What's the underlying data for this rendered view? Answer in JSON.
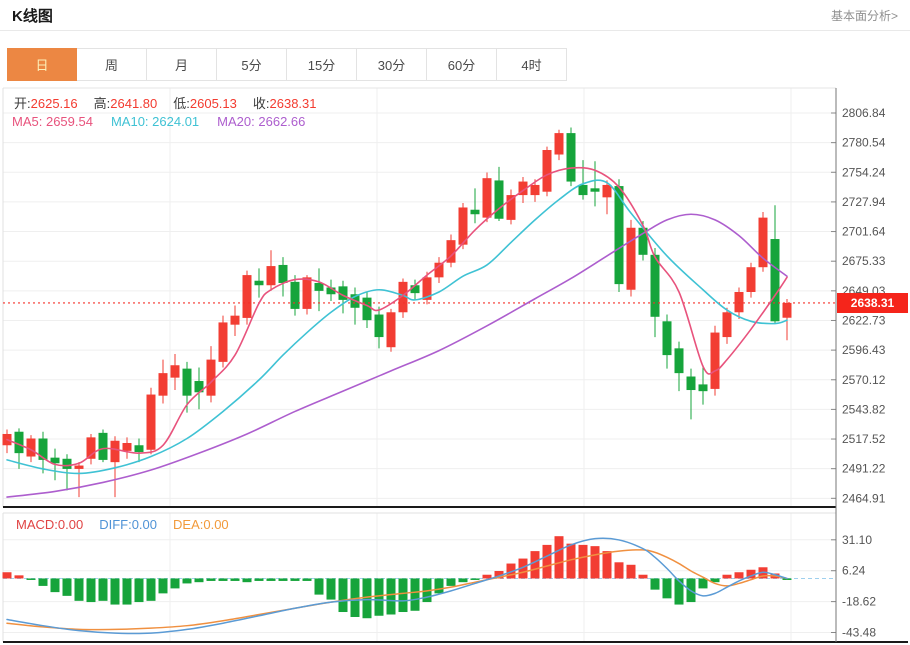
{
  "header": {
    "title": "K线图",
    "link": "基本面分析>"
  },
  "tabs": {
    "items": [
      "日",
      "周",
      "月",
      "5分",
      "15分",
      "30分",
      "60分",
      "4时"
    ],
    "active_index": 0
  },
  "quote": {
    "open_label": "开:",
    "open": "2625.16",
    "high_label": "高:",
    "high": "2641.80",
    "low_label": "低:",
    "low": "2605.13",
    "close_label": "收:",
    "close": "2638.31"
  },
  "ma": {
    "ma5_label": "MA5:",
    "ma5": "2659.54",
    "ma10_label": "MA10:",
    "ma10": "2624.01",
    "ma20_label": "MA20:",
    "ma20": "2662.66"
  },
  "price_badge": "2638.31",
  "macd_header": {
    "macd_label": "MACD:",
    "macd": "0.00",
    "diff_label": "DIFF:",
    "diff": "0.00",
    "dea_label": "DEA:",
    "dea": "0.00"
  },
  "colors": {
    "up_candle": "#f23d33",
    "down_candle": "#16a43b",
    "ma5_line": "#e8537d",
    "ma10_line": "#3fc2d4",
    "ma20_line": "#ad5ece",
    "diff_line": "#5b9bd5",
    "dea_line": "#f09040",
    "price_dotted_line": "#f5302a",
    "badge_bg": "#f5251b",
    "macd_zero_dash": "#9fd0ee",
    "tab_active_bg": "#ec8743",
    "tab_active_text": "#fdf0b8",
    "grid": "#efefef",
    "axis_text": "#555555"
  },
  "chart_data": {
    "type": "candlestick",
    "title": "K线图 (daily K-line with MA5/MA10/MA20 and MACD sub-chart)",
    "y_ticks": [
      "2806.84",
      "2780.54",
      "2754.24",
      "2727.94",
      "2701.64",
      "2675.33",
      "2649.03",
      "2622.73",
      "2596.43",
      "2570.12",
      "2543.82",
      "2517.52",
      "2491.22",
      "2464.91"
    ],
    "current_price": 2638.31,
    "ohlc_last": {
      "open": 2625.16,
      "high": 2641.8,
      "low": 2605.13,
      "close": 2638.31
    },
    "candles": [
      [
        2512,
        2526,
        2505,
        2522
      ],
      [
        2524,
        2527,
        2491,
        2505
      ],
      [
        2502,
        2521,
        2497,
        2518
      ],
      [
        2518,
        2524,
        2487,
        2499
      ],
      [
        2501,
        2509,
        2481,
        2496
      ],
      [
        2500,
        2504,
        2472,
        2491
      ],
      [
        2491,
        2497,
        2466,
        2494
      ],
      [
        2500,
        2522,
        2495,
        2519
      ],
      [
        2523,
        2526,
        2497,
        2499
      ],
      [
        2497,
        2520,
        2466,
        2516
      ],
      [
        2507,
        2519,
        2500,
        2514
      ],
      [
        2512,
        2518,
        2497,
        2506
      ],
      [
        2508,
        2563,
        2504,
        2557
      ],
      [
        2556,
        2588,
        2549,
        2576
      ],
      [
        2572,
        2593,
        2561,
        2583
      ],
      [
        2580,
        2586,
        2541,
        2556
      ],
      [
        2569,
        2581,
        2544,
        2559
      ],
      [
        2556,
        2600,
        2550,
        2588
      ],
      [
        2586,
        2627,
        2581,
        2621
      ],
      [
        2619,
        2636,
        2609,
        2627
      ],
      [
        2625,
        2667,
        2619,
        2663
      ],
      [
        2658,
        2669,
        2643,
        2654
      ],
      [
        2654,
        2685,
        2649,
        2671
      ],
      [
        2672,
        2679,
        2644,
        2656
      ],
      [
        2657,
        2663,
        2627,
        2633
      ],
      [
        2633,
        2663,
        2628,
        2661
      ],
      [
        2656,
        2669,
        2631,
        2649
      ],
      [
        2652,
        2659,
        2640,
        2646
      ],
      [
        2653,
        2658,
        2629,
        2641
      ],
      [
        2646,
        2652,
        2619,
        2634
      ],
      [
        2643,
        2648,
        2616,
        2623
      ],
      [
        2628,
        2635,
        2598,
        2608
      ],
      [
        2599,
        2633,
        2595,
        2630
      ],
      [
        2630,
        2660,
        2625,
        2657
      ],
      [
        2654,
        2659,
        2641,
        2647
      ],
      [
        2641,
        2666,
        2637,
        2661
      ],
      [
        2661,
        2679,
        2656,
        2674
      ],
      [
        2674,
        2699,
        2670,
        2694
      ],
      [
        2690,
        2727,
        2686,
        2723
      ],
      [
        2721,
        2740,
        2709,
        2717
      ],
      [
        2714,
        2754,
        2710,
        2749
      ],
      [
        2747,
        2759,
        2711,
        2713
      ],
      [
        2712,
        2739,
        2708,
        2734
      ],
      [
        2734,
        2750,
        2727,
        2746
      ],
      [
        2734,
        2748,
        2728,
        2743
      ],
      [
        2737,
        2777,
        2733,
        2774
      ],
      [
        2770,
        2792,
        2765,
        2789
      ],
      [
        2789,
        2794,
        2742,
        2746
      ],
      [
        2743,
        2765,
        2730,
        2734
      ],
      [
        2740,
        2764,
        2724,
        2737
      ],
      [
        2732,
        2747,
        2717,
        2743
      ],
      [
        2742,
        2748,
        2648,
        2655
      ],
      [
        2650,
        2712,
        2644,
        2705
      ],
      [
        2705,
        2711,
        2676,
        2681
      ],
      [
        2681,
        2687,
        2608,
        2626
      ],
      [
        2622,
        2628,
        2580,
        2592
      ],
      [
        2598,
        2604,
        2560,
        2576
      ],
      [
        2573,
        2580,
        2535,
        2561
      ],
      [
        2566,
        2583,
        2548,
        2560
      ],
      [
        2562,
        2618,
        2556,
        2612
      ],
      [
        2608,
        2634,
        2602,
        2630
      ],
      [
        2630,
        2652,
        2624,
        2648
      ],
      [
        2648,
        2674,
        2643,
        2670
      ],
      [
        2670,
        2719,
        2666,
        2714
      ],
      [
        2695,
        2725,
        2620,
        2622
      ],
      [
        2625.16,
        2641.8,
        2605.13,
        2638.31
      ]
    ],
    "ma5_points": [
      [
        0,
        2517
      ],
      [
        2,
        2508
      ],
      [
        4,
        2495
      ],
      [
        6,
        2496
      ],
      [
        8,
        2509
      ],
      [
        11,
        2505
      ],
      [
        13,
        2512
      ],
      [
        15,
        2548
      ],
      [
        17,
        2568
      ],
      [
        19,
        2592
      ],
      [
        21,
        2638
      ],
      [
        22,
        2650
      ],
      [
        24,
        2659
      ],
      [
        26,
        2657
      ],
      [
        28,
        2645
      ],
      [
        30,
        2636
      ],
      [
        31,
        2632
      ],
      [
        33,
        2645
      ],
      [
        35,
        2663
      ],
      [
        37,
        2680
      ],
      [
        39,
        2703
      ],
      [
        41,
        2722
      ],
      [
        43,
        2738
      ],
      [
        45,
        2752
      ],
      [
        47,
        2758
      ],
      [
        49,
        2756
      ],
      [
        51,
        2741
      ],
      [
        53,
        2707
      ],
      [
        54,
        2679
      ],
      [
        56,
        2648
      ],
      [
        58,
        2582
      ],
      [
        59,
        2578
      ],
      [
        60,
        2588
      ],
      [
        62,
        2615
      ],
      [
        64,
        2645
      ],
      [
        65,
        2661
      ]
    ],
    "ma10_points": [
      [
        0,
        2499
      ],
      [
        3,
        2491
      ],
      [
        6,
        2487
      ],
      [
        9,
        2492
      ],
      [
        12,
        2502
      ],
      [
        15,
        2518
      ],
      [
        18,
        2542
      ],
      [
        21,
        2570
      ],
      [
        23,
        2592
      ],
      [
        25,
        2612
      ],
      [
        27,
        2630
      ],
      [
        29,
        2644
      ],
      [
        31,
        2650
      ],
      [
        33,
        2645
      ],
      [
        34,
        2641
      ],
      [
        36,
        2648
      ],
      [
        38,
        2662
      ],
      [
        40,
        2672
      ],
      [
        42,
        2692
      ],
      [
        44,
        2712
      ],
      [
        46,
        2730
      ],
      [
        48,
        2744
      ],
      [
        50,
        2745
      ],
      [
        52,
        2718
      ],
      [
        55,
        2680
      ],
      [
        58,
        2650
      ],
      [
        60,
        2632
      ],
      [
        62,
        2622
      ],
      [
        64,
        2620
      ],
      [
        65,
        2623
      ]
    ],
    "ma20_points": [
      [
        0,
        2466
      ],
      [
        4,
        2471
      ],
      [
        8,
        2479
      ],
      [
        12,
        2490
      ],
      [
        16,
        2505
      ],
      [
        20,
        2522
      ],
      [
        24,
        2542
      ],
      [
        28,
        2560
      ],
      [
        32,
        2578
      ],
      [
        36,
        2596
      ],
      [
        40,
        2618
      ],
      [
        44,
        2642
      ],
      [
        47,
        2660
      ],
      [
        50,
        2680
      ],
      [
        53,
        2700
      ],
      [
        55,
        2712
      ],
      [
        57,
        2717
      ],
      [
        59,
        2712
      ],
      [
        61,
        2698
      ],
      [
        63,
        2678
      ],
      [
        65,
        2662
      ]
    ],
    "macd_panel": {
      "y_ticks": [
        "31.10",
        "6.24",
        "-18.62",
        "-43.48"
      ],
      "histogram": [
        5,
        2.5,
        -1,
        -6,
        -11,
        -14,
        -18,
        -19,
        -18,
        -21,
        -21,
        -19,
        -18,
        -12,
        -8,
        -4,
        -3,
        -2,
        -2,
        -2,
        -3,
        -2,
        -2,
        -2,
        -2,
        -2,
        -13,
        -17,
        -27,
        -31,
        -32,
        -30,
        -29,
        -27,
        -26,
        -19,
        -12,
        -6,
        -3,
        -1,
        3,
        6,
        12,
        16,
        22,
        27,
        34,
        28,
        27,
        26,
        22,
        13,
        11,
        3,
        -9,
        -16,
        -21,
        -19,
        -8,
        -3,
        3,
        5,
        7,
        9,
        4,
        -1
      ],
      "diff_points": [
        [
          0,
          -33
        ],
        [
          3,
          -38
        ],
        [
          6,
          -42
        ],
        [
          9,
          -44
        ],
        [
          12,
          -44
        ],
        [
          15,
          -41
        ],
        [
          18,
          -36
        ],
        [
          21,
          -30
        ],
        [
          24,
          -24
        ],
        [
          27,
          -19
        ],
        [
          30,
          -17
        ],
        [
          33,
          -18
        ],
        [
          35,
          -15
        ],
        [
          37,
          -10
        ],
        [
          39,
          -4
        ],
        [
          41,
          2
        ],
        [
          43,
          9
        ],
        [
          45,
          18
        ],
        [
          47,
          27
        ],
        [
          49,
          32
        ],
        [
          51,
          31
        ],
        [
          53,
          24
        ],
        [
          54,
          17
        ],
        [
          55,
          8
        ],
        [
          56,
          -2
        ],
        [
          57,
          -10
        ],
        [
          58,
          -14
        ],
        [
          59,
          -12
        ],
        [
          60,
          -7
        ],
        [
          61,
          -2
        ],
        [
          62,
          2
        ],
        [
          63,
          5
        ],
        [
          64,
          3
        ],
        [
          65,
          0
        ]
      ],
      "dea_points": [
        [
          0,
          -36
        ],
        [
          3,
          -39
        ],
        [
          6,
          -41
        ],
        [
          9,
          -41
        ],
        [
          12,
          -40
        ],
        [
          15,
          -38
        ],
        [
          18,
          -34
        ],
        [
          21,
          -29
        ],
        [
          24,
          -24
        ],
        [
          27,
          -19
        ],
        [
          30,
          -15
        ],
        [
          33,
          -12
        ],
        [
          35,
          -10
        ],
        [
          37,
          -7
        ],
        [
          39,
          -3
        ],
        [
          41,
          1
        ],
        [
          43,
          5
        ],
        [
          45,
          10
        ],
        [
          47,
          15
        ],
        [
          49,
          19
        ],
        [
          51,
          22
        ],
        [
          53,
          23
        ],
        [
          54,
          21
        ],
        [
          55,
          17
        ],
        [
          56,
          12
        ],
        [
          57,
          6
        ],
        [
          58,
          1
        ],
        [
          59,
          -4
        ],
        [
          60,
          -6
        ],
        [
          61,
          -4
        ],
        [
          62,
          -1
        ],
        [
          63,
          2
        ],
        [
          64,
          2
        ],
        [
          65,
          0
        ]
      ]
    },
    "layout": {
      "x_gridlines": [
        170,
        377,
        584,
        791
      ],
      "legend_position": "top-left",
      "grid": true
    }
  }
}
